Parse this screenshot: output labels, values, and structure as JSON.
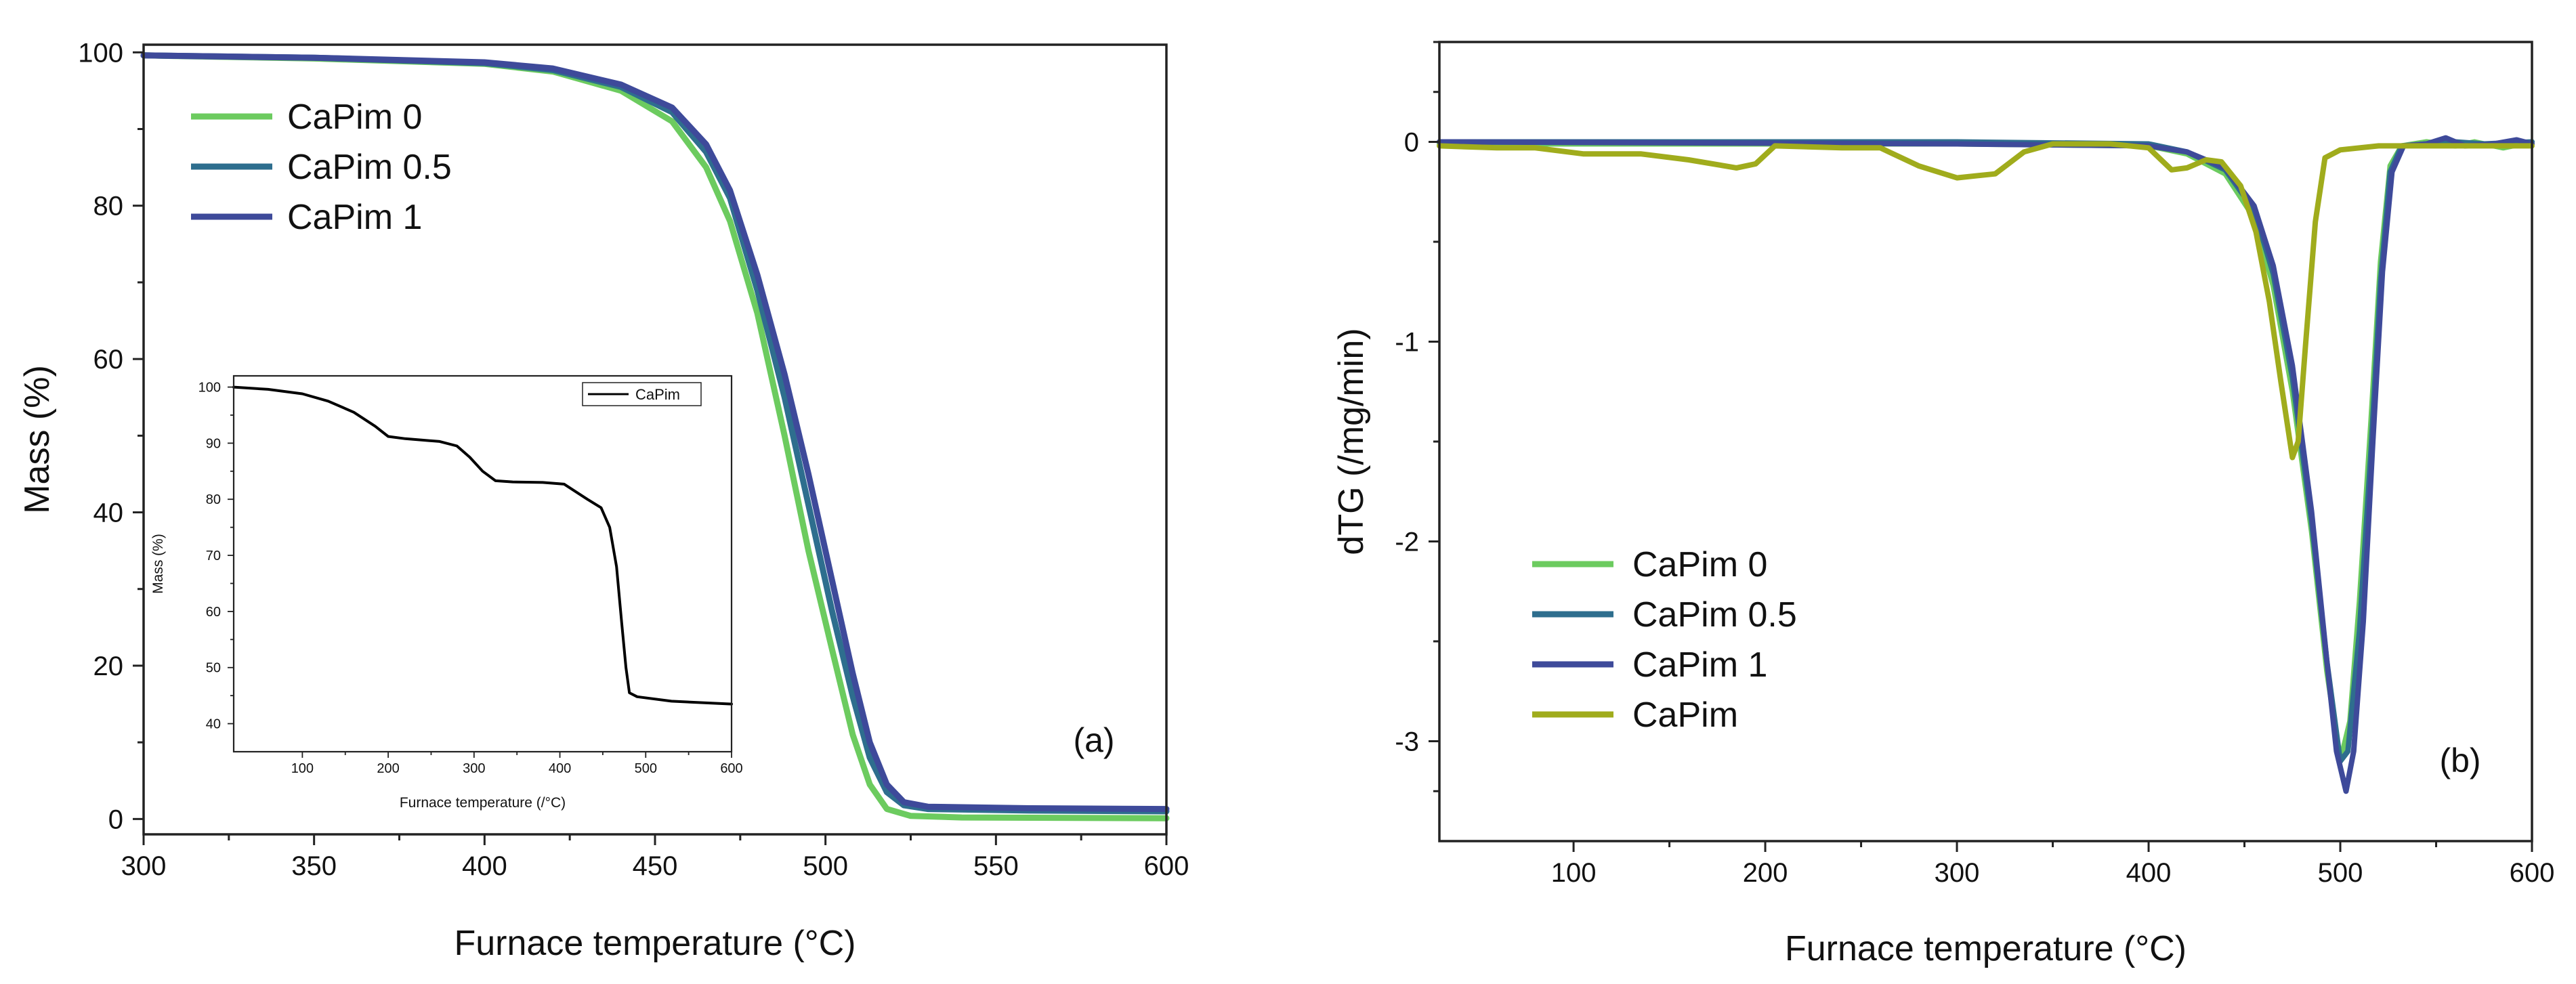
{
  "chart_data": [
    {
      "panel": "a",
      "type": "line",
      "panel_label": "(a)",
      "xlabel": "Furnace temperature (°C)",
      "ylabel": "Mass (%)",
      "xlim": [
        300,
        600
      ],
      "ylim": [
        -2,
        101
      ],
      "xticks": [
        300,
        350,
        400,
        450,
        500,
        550,
        600
      ],
      "yticks": [
        0,
        20,
        40,
        60,
        80,
        100
      ],
      "legend_position": "top-left",
      "series": [
        {
          "name": "CaPim 0",
          "color": "#6ccb5f",
          "points": [
            [
              300,
              99.6
            ],
            [
              350,
              99.2
            ],
            [
              400,
              98.5
            ],
            [
              420,
              97.5
            ],
            [
              440,
              95.0
            ],
            [
              455,
              91.0
            ],
            [
              465,
              85.0
            ],
            [
              472,
              78.0
            ],
            [
              480,
              66.0
            ],
            [
              488,
              50.0
            ],
            [
              495,
              35.0
            ],
            [
              502,
              22.0
            ],
            [
              508,
              11.0
            ],
            [
              513,
              4.5
            ],
            [
              518,
              1.3
            ],
            [
              525,
              0.4
            ],
            [
              540,
              0.2
            ],
            [
              600,
              0.1
            ]
          ]
        },
        {
          "name": "CaPim 0.5",
          "color": "#2e6e8e",
          "points": [
            [
              300,
              99.6
            ],
            [
              350,
              99.3
            ],
            [
              400,
              98.6
            ],
            [
              420,
              97.7
            ],
            [
              440,
              95.5
            ],
            [
              455,
              92.2
            ],
            [
              465,
              87.0
            ],
            [
              472,
              81.0
            ],
            [
              480,
              69.0
            ],
            [
              488,
              55.0
            ],
            [
              495,
              41.0
            ],
            [
              502,
              27.0
            ],
            [
              508,
              16.0
            ],
            [
              513,
              8.0
            ],
            [
              518,
              3.5
            ],
            [
              523,
              1.8
            ],
            [
              530,
              1.3
            ],
            [
              560,
              1.1
            ],
            [
              600,
              1.0
            ]
          ]
        },
        {
          "name": "CaPim 1",
          "color": "#3e4a9a",
          "points": [
            [
              300,
              99.6
            ],
            [
              350,
              99.3
            ],
            [
              400,
              98.7
            ],
            [
              420,
              97.9
            ],
            [
              440,
              95.8
            ],
            [
              455,
              92.8
            ],
            [
              465,
              88.0
            ],
            [
              472,
              82.0
            ],
            [
              480,
              71.0
            ],
            [
              488,
              58.0
            ],
            [
              495,
              45.0
            ],
            [
              502,
              31.0
            ],
            [
              508,
              19.0
            ],
            [
              513,
              10.0
            ],
            [
              518,
              4.5
            ],
            [
              523,
              2.2
            ],
            [
              530,
              1.6
            ],
            [
              560,
              1.4
            ],
            [
              600,
              1.3
            ]
          ]
        }
      ],
      "inset": {
        "type": "line",
        "xlabel": "Furnace temperature (/°C)",
        "ylabel": "Mass (%)",
        "xlim": [
          20,
          600
        ],
        "ylim": [
          35,
          102
        ],
        "xticks": [
          100,
          200,
          300,
          400,
          500,
          600
        ],
        "yticks": [
          40,
          50,
          60,
          70,
          80,
          90,
          100
        ],
        "legend_position": "top-right",
        "series": [
          {
            "name": "CaPim",
            "color": "#000000",
            "points": [
              [
                20,
                100.0
              ],
              [
                60,
                99.6
              ],
              [
                100,
                98.8
              ],
              [
                130,
                97.5
              ],
              [
                160,
                95.5
              ],
              [
                185,
                93.0
              ],
              [
                200,
                91.2
              ],
              [
                220,
                90.8
              ],
              [
                260,
                90.3
              ],
              [
                280,
                89.5
              ],
              [
                295,
                87.5
              ],
              [
                310,
                85.0
              ],
              [
                325,
                83.3
              ],
              [
                345,
                83.1
              ],
              [
                380,
                83.0
              ],
              [
                405,
                82.7
              ],
              [
                420,
                81.2
              ],
              [
                432,
                80.0
              ],
              [
                448,
                78.5
              ],
              [
                458,
                75.0
              ],
              [
                466,
                68.0
              ],
              [
                472,
                58.0
              ],
              [
                477,
                50.0
              ],
              [
                481,
                45.5
              ],
              [
                490,
                44.8
              ],
              [
                530,
                44.0
              ],
              [
                600,
                43.5
              ]
            ]
          }
        ]
      }
    },
    {
      "panel": "b",
      "type": "line",
      "panel_label": "(b)",
      "xlabel": "Furnace temperature (°C)",
      "ylabel": "dTG (/mg/min)",
      "xlim": [
        30,
        600
      ],
      "ylim": [
        -3.5,
        0.5
      ],
      "xticks": [
        100,
        200,
        300,
        400,
        500,
        600
      ],
      "yticks": [
        0,
        -1,
        -2,
        -3
      ],
      "legend_position": "bottom-left",
      "series": [
        {
          "name": "CaPim 0",
          "color": "#6ccb5f",
          "points": [
            [
              30,
              -0.01
            ],
            [
              300,
              -0.01
            ],
            [
              400,
              -0.02
            ],
            [
              420,
              -0.06
            ],
            [
              440,
              -0.16
            ],
            [
              455,
              -0.38
            ],
            [
              465,
              -0.72
            ],
            [
              475,
              -1.25
            ],
            [
              485,
              -1.95
            ],
            [
              493,
              -2.65
            ],
            [
              500,
              -3.1
            ],
            [
              505,
              -2.9
            ],
            [
              510,
              -2.3
            ],
            [
              516,
              -1.4
            ],
            [
              521,
              -0.6
            ],
            [
              526,
              -0.12
            ],
            [
              532,
              -0.02
            ],
            [
              545,
              0.0
            ],
            [
              560,
              -0.02
            ],
            [
              570,
              0.0
            ],
            [
              585,
              -0.03
            ],
            [
              600,
              0.0
            ]
          ]
        },
        {
          "name": "CaPim 0.5",
          "color": "#2e6e8e",
          "points": [
            [
              30,
              0.0
            ],
            [
              300,
              0.0
            ],
            [
              400,
              -0.01
            ],
            [
              420,
              -0.05
            ],
            [
              440,
              -0.14
            ],
            [
              455,
              -0.34
            ],
            [
              465,
              -0.66
            ],
            [
              475,
              -1.18
            ],
            [
              485,
              -1.9
            ],
            [
              493,
              -2.6
            ],
            [
              500,
              -3.1
            ],
            [
              504,
              -3.05
            ],
            [
              510,
              -2.45
            ],
            [
              516,
              -1.55
            ],
            [
              521,
              -0.7
            ],
            [
              526,
              -0.15
            ],
            [
              532,
              -0.02
            ],
            [
              545,
              -0.01
            ],
            [
              560,
              0.0
            ],
            [
              575,
              -0.01
            ],
            [
              600,
              0.0
            ]
          ]
        },
        {
          "name": "CaPim 1",
          "color": "#3e4a9a",
          "points": [
            [
              30,
              0.0
            ],
            [
              300,
              -0.01
            ],
            [
              400,
              -0.02
            ],
            [
              420,
              -0.05
            ],
            [
              440,
              -0.13
            ],
            [
              455,
              -0.32
            ],
            [
              465,
              -0.62
            ],
            [
              475,
              -1.12
            ],
            [
              485,
              -1.85
            ],
            [
              493,
              -2.6
            ],
            [
              498,
              -3.05
            ],
            [
              503,
              -3.25
            ],
            [
              507,
              -3.05
            ],
            [
              512,
              -2.4
            ],
            [
              517,
              -1.5
            ],
            [
              522,
              -0.65
            ],
            [
              527,
              -0.15
            ],
            [
              533,
              -0.02
            ],
            [
              545,
              -0.01
            ],
            [
              555,
              0.02
            ],
            [
              565,
              -0.02
            ],
            [
              580,
              -0.01
            ],
            [
              592,
              0.01
            ],
            [
              600,
              -0.01
            ]
          ]
        },
        {
          "name": "CaPim",
          "color": "#a0ac1c",
          "points": [
            [
              30,
              -0.02
            ],
            [
              60,
              -0.03
            ],
            [
              80,
              -0.03
            ],
            [
              105,
              -0.06
            ],
            [
              135,
              -0.06
            ],
            [
              160,
              -0.09
            ],
            [
              185,
              -0.13
            ],
            [
              195,
              -0.11
            ],
            [
              205,
              -0.02
            ],
            [
              240,
              -0.03
            ],
            [
              260,
              -0.03
            ],
            [
              280,
              -0.12
            ],
            [
              300,
              -0.18
            ],
            [
              320,
              -0.16
            ],
            [
              335,
              -0.05
            ],
            [
              350,
              -0.01
            ],
            [
              380,
              -0.01
            ],
            [
              400,
              -0.03
            ],
            [
              412,
              -0.14
            ],
            [
              420,
              -0.13
            ],
            [
              430,
              -0.09
            ],
            [
              438,
              -0.1
            ],
            [
              448,
              -0.22
            ],
            [
              456,
              -0.45
            ],
            [
              463,
              -0.8
            ],
            [
              469,
              -1.2
            ],
            [
              475,
              -1.58
            ],
            [
              478,
              -1.5
            ],
            [
              482,
              -1.0
            ],
            [
              487,
              -0.4
            ],
            [
              492,
              -0.08
            ],
            [
              500,
              -0.04
            ],
            [
              520,
              -0.02
            ],
            [
              600,
              -0.02
            ]
          ]
        }
      ]
    }
  ]
}
